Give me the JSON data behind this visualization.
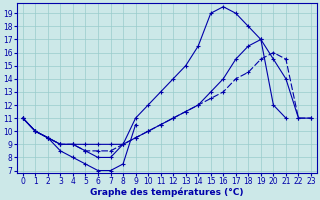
{
  "title": "Graphe des températures (°C)",
  "xlim_min": -0.5,
  "xlim_max": 23.5,
  "ylim_min": 6.8,
  "ylim_max": 19.8,
  "xticks": [
    0,
    1,
    2,
    3,
    4,
    5,
    6,
    7,
    8,
    9,
    10,
    11,
    12,
    13,
    14,
    15,
    16,
    17,
    18,
    19,
    20,
    21,
    22,
    23
  ],
  "yticks": [
    7,
    8,
    9,
    10,
    11,
    12,
    13,
    14,
    15,
    16,
    17,
    18,
    19
  ],
  "bg_color": "#cce8e8",
  "line_color": "#0000aa",
  "grid_color": "#99cccc",
  "line1_x": [
    0,
    1,
    2,
    3,
    4,
    5,
    6,
    7,
    8,
    9,
    10,
    11,
    12,
    13,
    14,
    15,
    16,
    17,
    18,
    19,
    20,
    21
  ],
  "line1_y": [
    11,
    10,
    9.5,
    9,
    9,
    8.5,
    8,
    8,
    9,
    11,
    12,
    13,
    14,
    15,
    16.5,
    19,
    19.5,
    19,
    18,
    17,
    12,
    11
  ],
  "line2_x": [
    0,
    1,
    2,
    3,
    4,
    5,
    6,
    7,
    8,
    9,
    10,
    11,
    12,
    13,
    14,
    15,
    16,
    17,
    18,
    19,
    20,
    21,
    22,
    23
  ],
  "line2_y": [
    11,
    10,
    9.5,
    9,
    9,
    9,
    9,
    9,
    9,
    9.5,
    10,
    10.5,
    11,
    11.5,
    12,
    13,
    14,
    15.5,
    16.5,
    17,
    15.5,
    14,
    11,
    11
  ],
  "line3_x": [
    0,
    1,
    2,
    3,
    4,
    5,
    6,
    7,
    8,
    9,
    10,
    11,
    12,
    13,
    14,
    15,
    16,
    17,
    18,
    19,
    20,
    21,
    22,
    23
  ],
  "line3_y": [
    11,
    10,
    9.5,
    9,
    9,
    8.5,
    8.5,
    8.5,
    9,
    9.5,
    10,
    10.5,
    11,
    11.5,
    12,
    12.5,
    13,
    14,
    14.5,
    15.5,
    16,
    15.5,
    11,
    11
  ],
  "line4_x": [
    0,
    1,
    2,
    3,
    4,
    5,
    6,
    7,
    8,
    9
  ],
  "line4_y": [
    11,
    10,
    9.5,
    8.5,
    8,
    7.5,
    7,
    7,
    7.5,
    10.5
  ]
}
